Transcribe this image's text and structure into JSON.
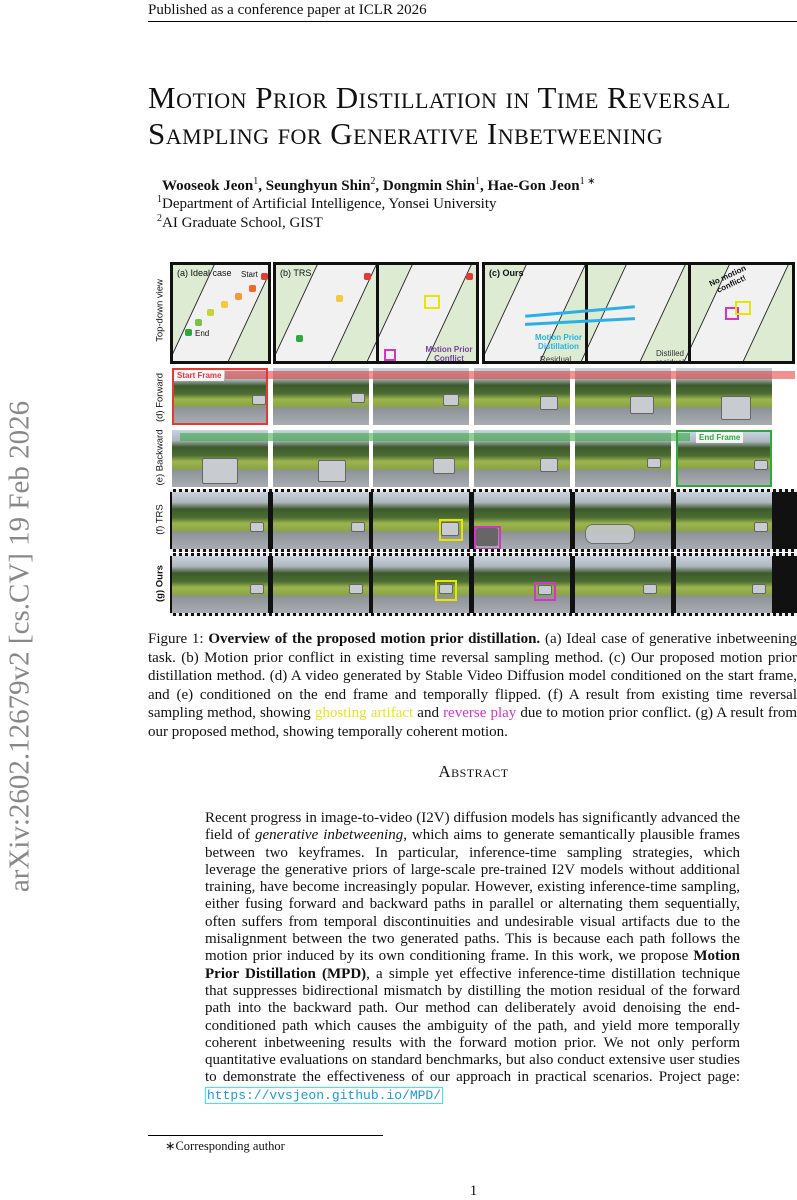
{
  "header": "Published as a conference paper at ICLR 2026",
  "arxiv_id": "arXiv:2602.12679v2  [cs.CV]  19 Feb 2026",
  "title": "Motion Prior Distillation in Time Reversal Sampling for Generative Inbetweening",
  "authors": [
    {
      "name": "Wooseok Jeon",
      "sup": "1"
    },
    {
      "name": "Seunghyun Shin",
      "sup": "2"
    },
    {
      "name": "Dongmin Shin",
      "sup": "1"
    },
    {
      "name": "Hae-Gon Jeon",
      "sup": "1 ∗"
    }
  ],
  "affiliations": [
    {
      "sup": "1",
      "text": "Department of Artificial Intelligence, Yonsei University"
    },
    {
      "sup": "2",
      "text": "AI Graduate School, GIST"
    }
  ],
  "figure": {
    "row_labels": [
      "Top-down view",
      "(d) Forward",
      "(e) Backward",
      "(f) TRS",
      "(g) Ours"
    ],
    "panel_labels": {
      "a": "(a) Ideal case",
      "b": "(b) TRS",
      "c": "(c) Ours"
    },
    "annotations": {
      "start": "Start",
      "end": "End",
      "conflict": "Motion Prior Conflict",
      "distillation": "Motion Prior Distillation",
      "residual": "Residual",
      "distilled": "Distilled residual",
      "no_conflict": "No motion conflict!"
    },
    "start_frame": "Start Frame",
    "end_frame": "End Frame",
    "colors": {
      "ghosting": "#e6e600",
      "reverse": "#d633c8",
      "start": "#e53935",
      "end": "#2eaa3a"
    }
  },
  "caption": {
    "prefix": "Figure 1: ",
    "bold": "Overview of the proposed motion prior distillation.",
    "text1": " (a) Ideal case of generative inbetweening task. (b) Motion prior conflict in existing time reversal sampling method. (c) Our proposed motion prior distillation method. (d) A video generated by Stable Video Diffusion model conditioned on the start frame, and (e) conditioned on the end frame and temporally flipped. (f) A result from existing time reversal sampling method, showing ",
    "ghosting": "ghosting artifact",
    "and": " and ",
    "reverse": "reverse play",
    "text2": " due to motion prior conflict. (g) A result from our proposed method, showing temporally coherent motion."
  },
  "abstract": {
    "heading": "Abstract",
    "t1": "Recent progress in image-to-video (I2V) diffusion models has significantly advanced the field of ",
    "em": "generative inbetweening",
    "t2": ", which aims to generate semantically plausible frames between two keyframes. In particular, inference-time sampling strategies, which leverage the generative priors of large-scale pre-trained I2V models without additional training, have become increasingly popular. However, existing inference-time sampling, either fusing forward and backward paths in parallel or alternating them sequentially, often suffers from temporal discontinuities and undesirable visual artifacts due to the misalignment between the two generated paths. This is because each path follows the motion prior induced by its own conditioning frame. In this work, we propose ",
    "bold": "Motion Prior Distillation (MPD)",
    "t3": ", a simple yet effective inference-time distillation technique that suppresses bidirectional mismatch by distilling the motion residual of the forward path into the backward path. Our method can deliberately avoid denoising the end-conditioned path which causes the ambiguity of the path, and yield more temporally coherent inbetweening results with the forward motion prior. We not only perform quantitative evaluations on standard benchmarks, but also conduct extensive user studies to demonstrate the effectiveness of our approach in practical scenarios. Project page: ",
    "link": "https://vvsjeon.github.io/MPD/"
  },
  "footnote": "∗Corresponding author",
  "page_number": "1"
}
